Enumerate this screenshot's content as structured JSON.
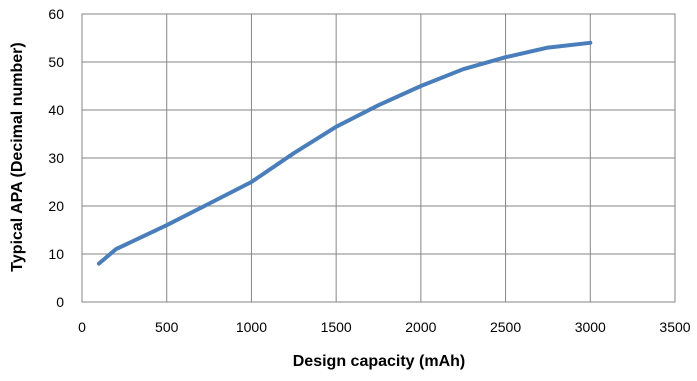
{
  "chart_data": {
    "type": "line",
    "title": "",
    "xlabel": "Design capacity (mAh)",
    "ylabel": "Typical APA (Decimal number)",
    "xlim": [
      0,
      3500
    ],
    "ylim": [
      0,
      60
    ],
    "xticks": [
      0,
      500,
      1000,
      1500,
      2000,
      2500,
      3000,
      3500
    ],
    "yticks": [
      0,
      10,
      20,
      30,
      40,
      50,
      60
    ],
    "xtick_labels": [
      "0",
      "500",
      "1000",
      "1500",
      "2000",
      "2500",
      "3000",
      "3500"
    ],
    "ytick_labels": [
      "0",
      "10",
      "20",
      "30",
      "40",
      "50",
      "60"
    ],
    "grid": true,
    "legend": "none",
    "series": [
      {
        "color": "#4a7ebb",
        "x": [
          100,
          200,
          500,
          750,
          1000,
          1250,
          1500,
          1750,
          2000,
          2250,
          2500,
          2750,
          3000
        ],
        "y": [
          8,
          11,
          16,
          20.5,
          25,
          31,
          36.5,
          41,
          45,
          48.5,
          51,
          53,
          54
        ]
      }
    ]
  }
}
